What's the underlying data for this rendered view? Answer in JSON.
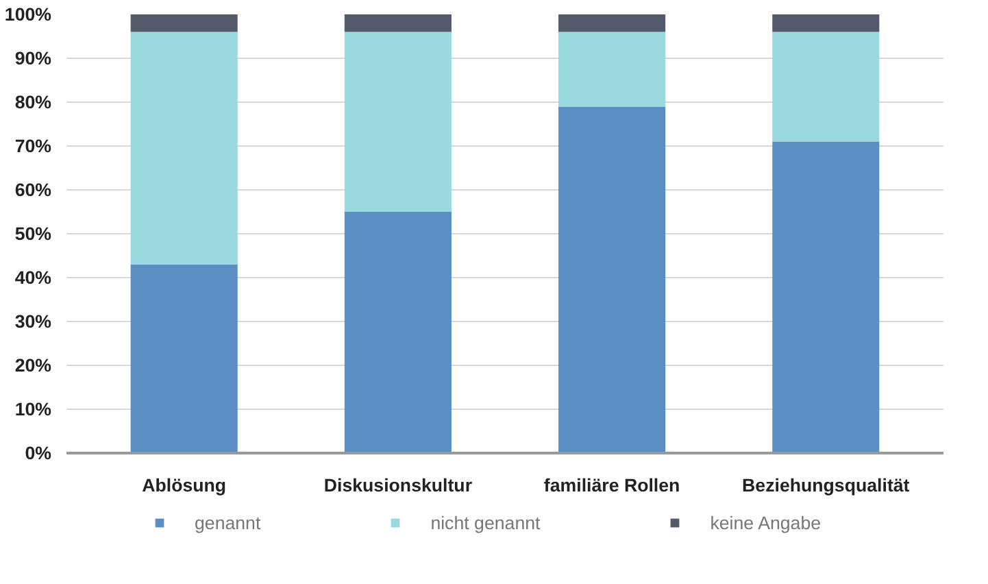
{
  "chart_data": {
    "type": "bar",
    "stacked": true,
    "categories": [
      "Ablösung",
      "Diskusionskultur",
      "familiäre Rollen",
      "Beziehungsqualität"
    ],
    "series": [
      {
        "name": "genannt",
        "color": "#5b8fc4",
        "values": [
          43,
          55,
          79,
          71
        ]
      },
      {
        "name": "nicht genannt",
        "color": "#9ad9de",
        "values": [
          53,
          41,
          17,
          25
        ]
      },
      {
        "name": "keine Angabe",
        "color": "#555a6b",
        "values": [
          4,
          4,
          4,
          4
        ]
      }
    ],
    "ylim": [
      0,
      100
    ],
    "yticks": [
      {
        "value": 0,
        "label": "0%"
      },
      {
        "value": 10,
        "label": "10%"
      },
      {
        "value": 20,
        "label": "20%"
      },
      {
        "value": 30,
        "label": "30%"
      },
      {
        "value": 40,
        "label": "40%"
      },
      {
        "value": 50,
        "label": "50%"
      },
      {
        "value": 60,
        "label": "60%"
      },
      {
        "value": 70,
        "label": "70%"
      },
      {
        "value": 80,
        "label": "80%"
      },
      {
        "value": 90,
        "label": "90%"
      },
      {
        "value": 100,
        "label": "100%"
      }
    ],
    "grid": "y",
    "legend": "bottom"
  }
}
